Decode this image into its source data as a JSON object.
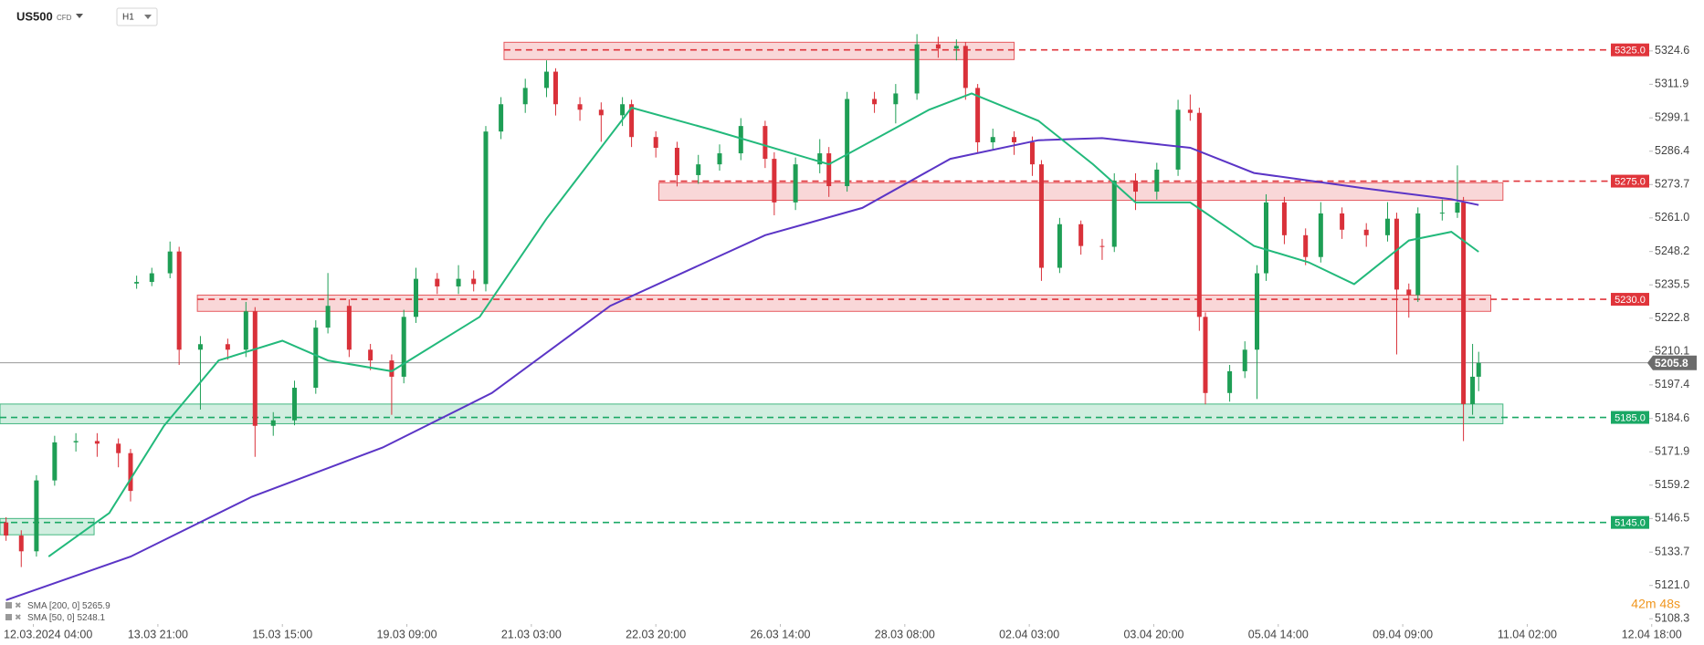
{
  "header": {
    "symbol": "US500",
    "kind": "CFD",
    "timeframe": "H1"
  },
  "chart_data": {
    "type": "candlestick",
    "xlim": [
      -16,
      538
    ],
    "ylim": [
      5107,
      5344
    ],
    "xticks": [
      {
        "value": -5,
        "label": "12.03.2024  04:00"
      },
      {
        "value": 36,
        "label": "13.03  21:00"
      },
      {
        "value": 77,
        "label": "15.03  15:00"
      },
      {
        "value": 118,
        "label": "19.03  09:00"
      },
      {
        "value": 159,
        "label": "21.03  03:00"
      },
      {
        "value": 200,
        "label": "22.03  20:00"
      },
      {
        "value": 241,
        "label": "26.03  14:00"
      },
      {
        "value": 282,
        "label": "28.03  08:00"
      },
      {
        "value": 323,
        "label": "02.04  03:00"
      },
      {
        "value": 364,
        "label": "03.04  20:00"
      },
      {
        "value": 405,
        "label": "05.04  14:00"
      },
      {
        "value": 446,
        "label": "09.04  09:00"
      },
      {
        "value": 487,
        "label": "11.04  02:00"
      },
      {
        "value": 528,
        "label": "12.04  18:00"
      }
    ],
    "yticks": [
      5324.6,
      5311.9,
      5299.1,
      5286.4,
      5273.7,
      {
        "value": 5261,
        "label": "5261.0"
      },
      5248.2,
      5235.5,
      5222.8,
      5210.1,
      5197.4,
      5184.6,
      5171.9,
      5159.2,
      5146.5,
      5133.7,
      {
        "value": 5121,
        "label": "5121.0"
      },
      5108.3
    ],
    "up_color": "#1e9e55",
    "down_color": "#d9313a",
    "candles": {
      "x": [
        -14,
        -9,
        -4,
        2,
        9,
        16,
        23,
        27,
        29,
        34,
        40,
        43,
        50,
        59,
        65,
        68,
        74,
        81,
        88,
        92,
        99,
        106,
        113,
        117,
        121,
        128,
        135,
        140,
        144,
        149,
        157,
        164,
        167,
        175,
        182,
        189,
        192,
        200,
        207,
        214,
        221,
        228,
        236,
        239,
        246,
        254,
        257,
        263,
        272,
        279,
        286,
        293,
        299,
        302,
        306,
        311,
        318,
        324,
        327,
        333,
        340,
        347,
        351,
        358,
        365,
        372,
        376,
        379,
        381,
        389,
        394,
        398,
        401,
        407,
        414,
        419,
        426,
        434,
        441,
        444,
        448,
        451,
        459,
        464,
        466,
        469,
        471
      ],
      "open": [
        5145,
        5140,
        5134,
        5161,
        5175.5,
        5176,
        5175,
        5171.4,
        5236,
        5236.6,
        5239.9,
        5248.2,
        5210.8,
        5212.9,
        5210.8,
        5225.4,
        5181.8,
        5183.9,
        5196.3,
        5219.2,
        5227.5,
        5210.8,
        5206.7,
        5200.5,
        5223.3,
        5237.8,
        5234.9,
        5237.8,
        5235.8,
        5293.9,
        5304.3,
        5310.5,
        5316.7,
        5304.3,
        5302.2,
        5300.1,
        5304.3,
        5291.8,
        5287.7,
        5277.3,
        5281.4,
        5285.6,
        5296,
        5283.5,
        5266.9,
        5281.4,
        5285.6,
        5273.1,
        5306.3,
        5304.3,
        5308.4,
        5327.1,
        5325.5,
        5326.5,
        5310.5,
        5289.8,
        5291.8,
        5289.8,
        5281.4,
        5242,
        5258.6,
        5250.3,
        5250,
        5275.2,
        5271,
        5279.4,
        5302.2,
        5301,
        5223.3,
        5194.3,
        5202.6,
        5210.8,
        5239.9,
        5266.9,
        5254.4,
        5246.1,
        5262.7,
        5256.5,
        5254.4,
        5260.7,
        5233.7,
        5231.6,
        5262.7,
        5263,
        5266.9,
        5190.1,
        5200.5
      ],
      "high": [
        5147,
        5142,
        5163,
        5178,
        5179,
        5179,
        5177,
        5173,
        5239,
        5242,
        5252,
        5250,
        5216,
        5215,
        5229,
        5227,
        5187,
        5199,
        5222,
        5240,
        5230,
        5213,
        5209,
        5226,
        5242,
        5240,
        5243,
        5241,
        5296,
        5307,
        5314,
        5321,
        5318,
        5307,
        5305,
        5307,
        5306,
        5294,
        5290,
        5285,
        5289,
        5299,
        5298,
        5286,
        5284,
        5291,
        5288,
        5309,
        5309,
        5312,
        5331,
        5330,
        5329,
        5328,
        5312,
        5295,
        5294,
        5292,
        5283,
        5261,
        5260,
        5253,
        5278,
        5278,
        5282,
        5306,
        5308,
        5303,
        5225,
        5205,
        5214,
        5243,
        5270,
        5269,
        5257,
        5267,
        5265,
        5259,
        5267,
        5263,
        5236,
        5265,
        5268,
        5281,
        5269,
        5213,
        5210
      ],
      "low": [
        5138,
        5128,
        5132,
        5159,
        5172,
        5170,
        5166,
        5153,
        5234,
        5235,
        5238,
        5205,
        5188,
        5207,
        5208,
        5170,
        5178,
        5182,
        5194,
        5217,
        5208,
        5203,
        5186,
        5198,
        5221,
        5232,
        5232,
        5233,
        5233,
        5291,
        5301,
        5307,
        5300,
        5298,
        5290,
        5296,
        5288,
        5284,
        5273,
        5274,
        5279,
        5283,
        5280,
        5262,
        5264,
        5278,
        5269,
        5271,
        5301,
        5297,
        5306,
        5322,
        5321,
        5306,
        5286,
        5287,
        5285,
        5277,
        5237,
        5240,
        5247,
        5245,
        5248,
        5264,
        5268,
        5277,
        5298,
        5218,
        5190,
        5191,
        5200,
        5192,
        5237,
        5251,
        5243,
        5244,
        5253,
        5250,
        5252,
        5209,
        5223,
        5229,
        5260,
        5261,
        5176,
        5186,
        5195
      ],
      "close": [
        5140,
        5134,
        5161,
        5175.5,
        5176,
        5175,
        5171.4,
        5157,
        5236.6,
        5239.9,
        5248.2,
        5210.8,
        5212.9,
        5210.8,
        5225.4,
        5181.8,
        5183.9,
        5196.3,
        5219.2,
        5227.5,
        5210.8,
        5206.7,
        5200.5,
        5223.3,
        5237.8,
        5234.9,
        5237.8,
        5235.8,
        5293.9,
        5304.3,
        5310.5,
        5316.7,
        5304.3,
        5302.2,
        5300.1,
        5304.3,
        5291.8,
        5287.7,
        5277.3,
        5281.4,
        5285.6,
        5296,
        5283.5,
        5266.9,
        5281.4,
        5285.6,
        5273.1,
        5306.3,
        5304.3,
        5308.4,
        5327.1,
        5325.5,
        5326.5,
        5310.5,
        5289.8,
        5291.8,
        5289.8,
        5281.4,
        5242,
        5258.6,
        5250.3,
        5250,
        5275.2,
        5271,
        5279.4,
        5302.2,
        5301,
        5223.3,
        5194.3,
        5202.6,
        5210.8,
        5239.9,
        5266.9,
        5254.4,
        5246.1,
        5262.7,
        5256.5,
        5254.4,
        5260.7,
        5233.7,
        5231.6,
        5262.7,
        5263,
        5266.9,
        5190.1,
        5200.5,
        5205.8
      ]
    },
    "series": [
      {
        "name": "SMA [200, 0]",
        "last_value": 5265.9,
        "color": "#5b35c6",
        "x": [
          -14,
          27,
          67,
          110,
          146,
          185,
          236,
          268,
          297,
          326,
          347,
          376,
          397,
          433,
          462,
          471
        ],
        "values": [
          5115.4,
          5132,
          5154.8,
          5173.5,
          5194.3,
          5227.5,
          5254.4,
          5264.8,
          5283.5,
          5290.6,
          5291.4,
          5287.7,
          5278.1,
          5272.3,
          5268.1,
          5265.9
        ]
      },
      {
        "name": "SMA [50, 0]",
        "last_value": 5248.1,
        "color": "#22b97b",
        "x": [
          0,
          20,
          38,
          56,
          77,
          92,
          113,
          142,
          164,
          192,
          218,
          257,
          290,
          304,
          326,
          344,
          358,
          376,
          397,
          415,
          430,
          448,
          462,
          471
        ],
        "values": [
          5132,
          5148.6,
          5181.8,
          5206.7,
          5214.2,
          5206.7,
          5202.6,
          5223.3,
          5260.7,
          5303,
          5294.7,
          5281.4,
          5302.2,
          5308.4,
          5298,
          5281.4,
          5266.9,
          5266.9,
          5250.3,
          5244.1,
          5235.8,
          5252.4,
          5255.7,
          5248.1
        ]
      }
    ],
    "levels": [
      {
        "value": 5325,
        "label": "5325.0",
        "color": "#e0353b",
        "zone": [
          5321.3,
          5327.9
        ],
        "from": 150,
        "to": 318
      },
      {
        "value": 5275,
        "label": "5275.0",
        "color": "#e0353b",
        "zone": [
          5267.7,
          5274.4
        ],
        "from": 201,
        "to": 479
      },
      {
        "value": 5230,
        "label": "5230.0",
        "color": "#e0353b",
        "zone": [
          5225.4,
          5231.6
        ],
        "from": 49,
        "to": 475
      },
      {
        "value": 5185,
        "label": "5185.0",
        "color": "#1aa865",
        "zone": [
          5182.6,
          5190.1
        ],
        "from": -16,
        "to": 479
      },
      {
        "value": 5145,
        "label": "5145.0",
        "color": "#1aa865",
        "zone": [
          5140.3,
          5146.5
        ],
        "from": -16,
        "to": 15
      }
    ],
    "current_price": 5205.8,
    "countdown": "42m 48s"
  }
}
